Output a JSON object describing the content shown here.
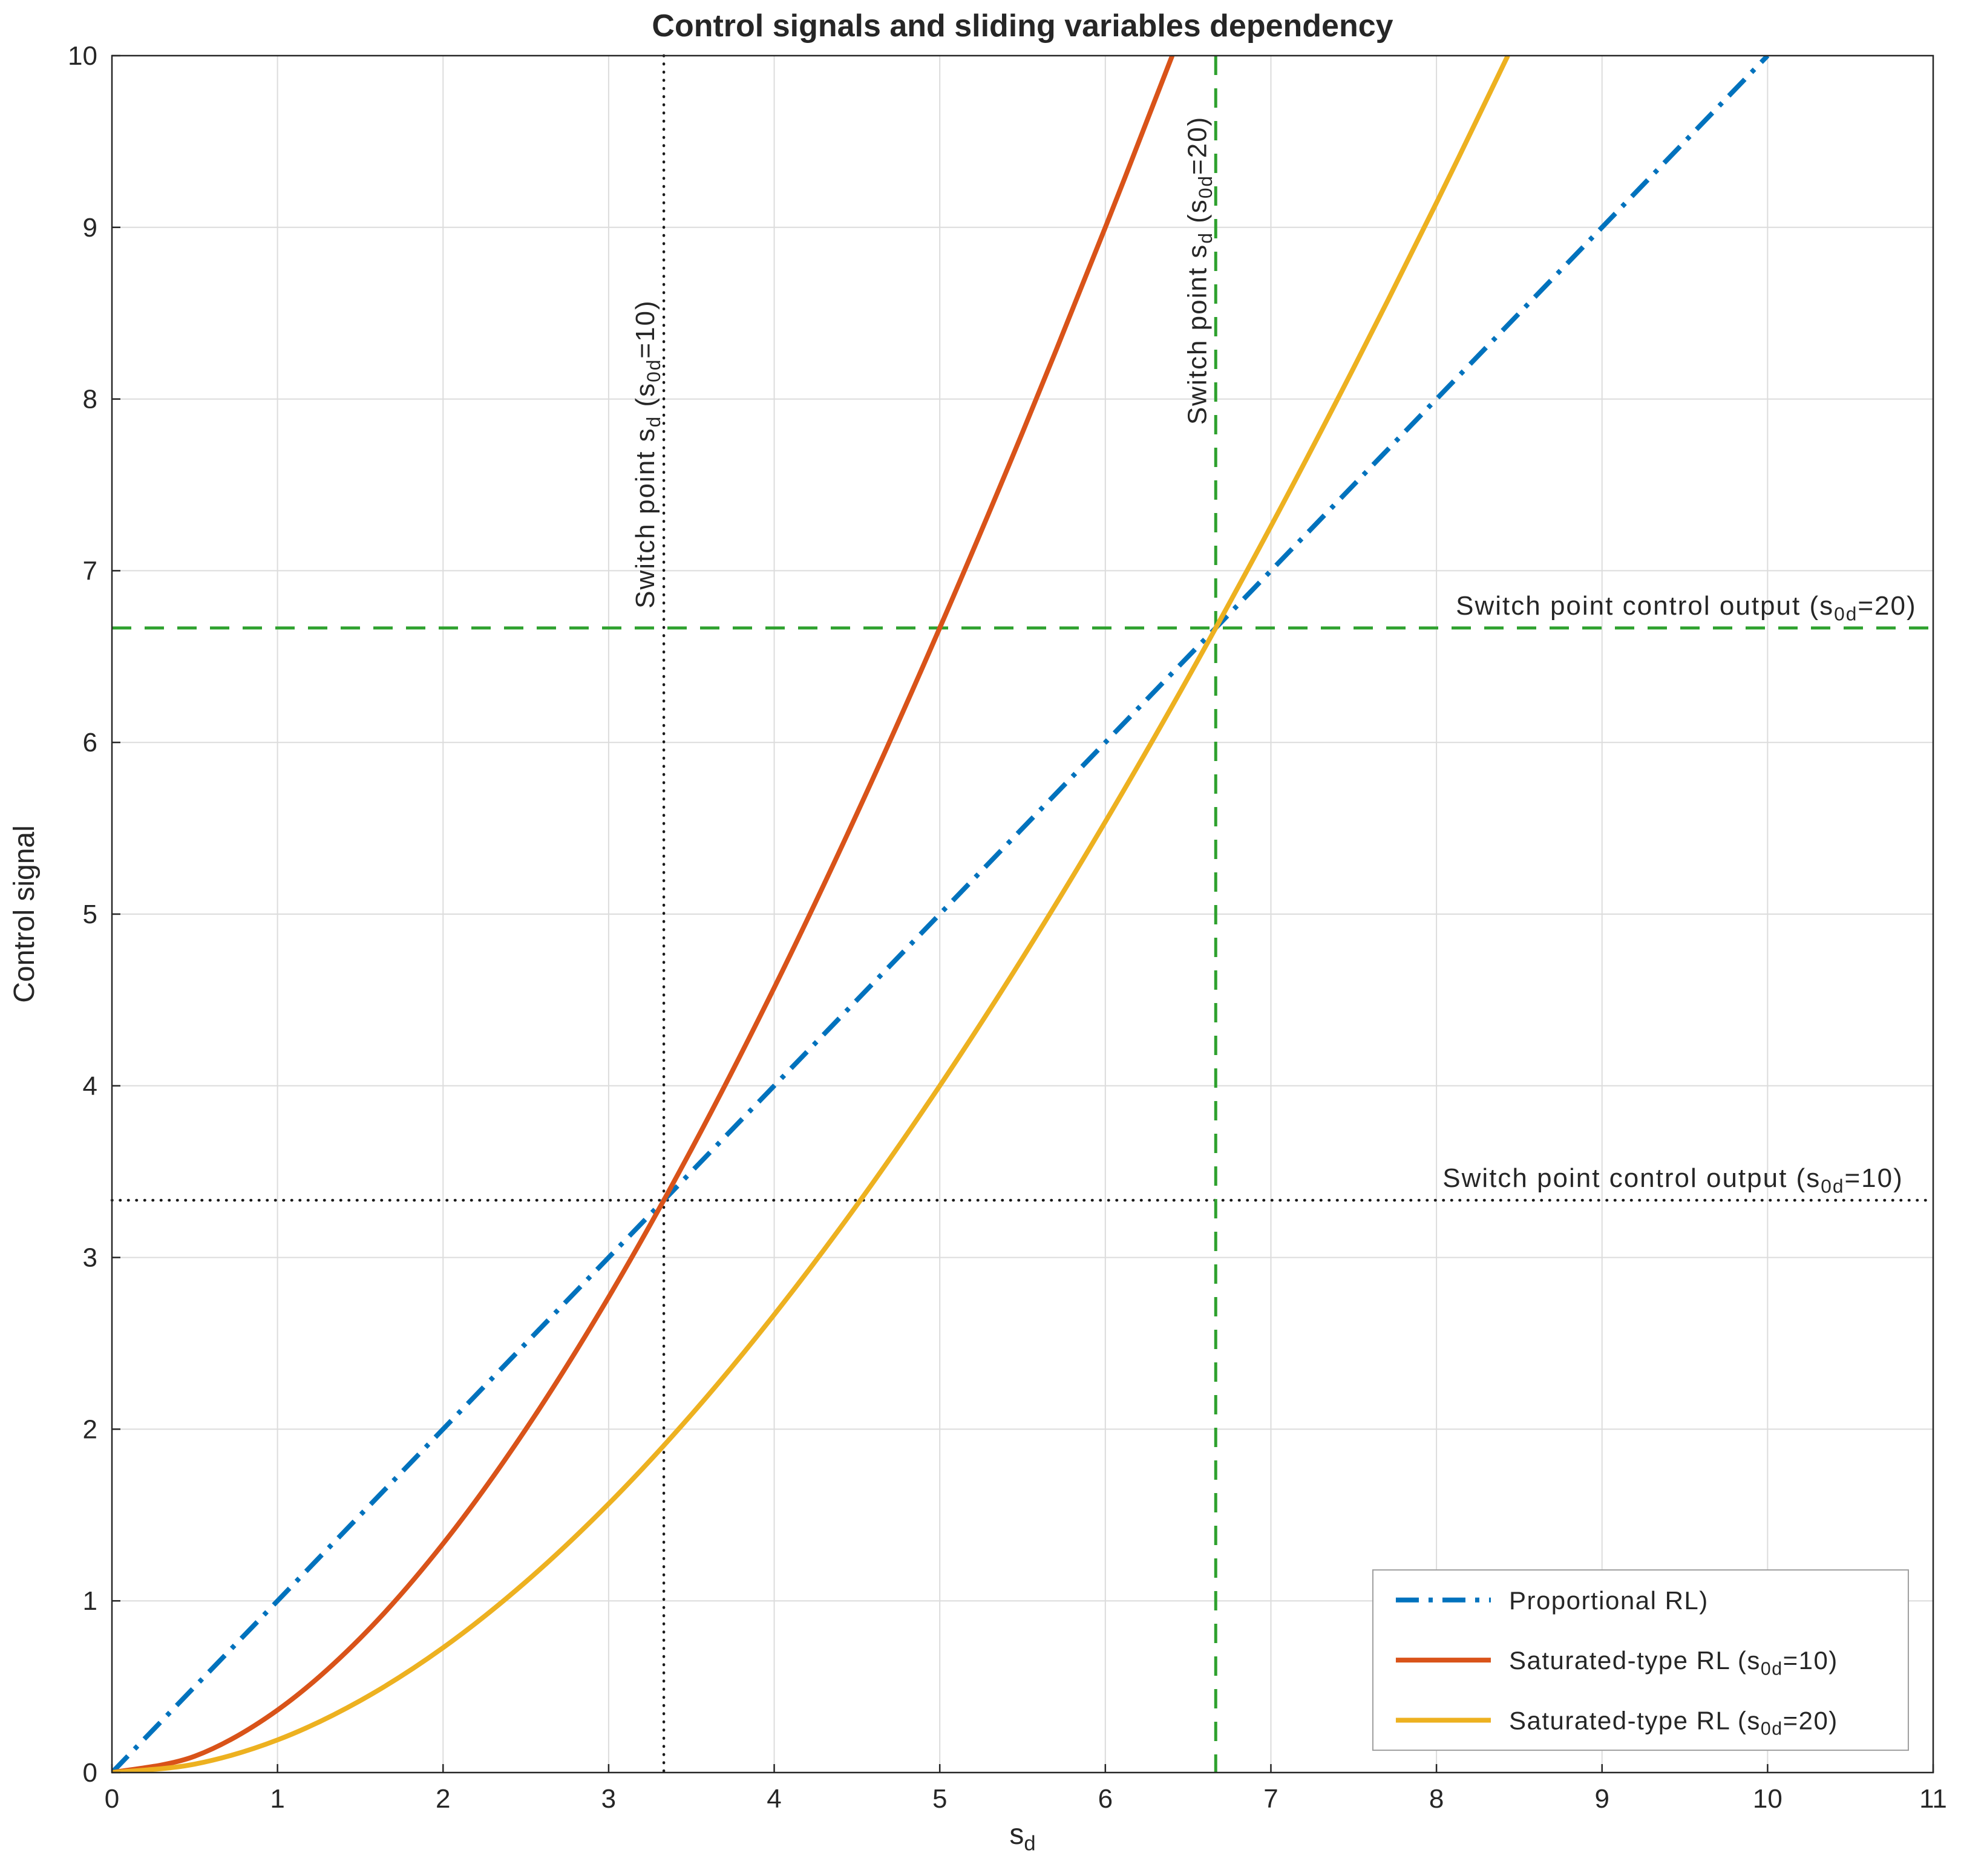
{
  "figure": {
    "background": "#ffffff"
  },
  "chart_data": {
    "type": "line",
    "title": "Control signals and sliding variables dependency",
    "xlabel": "s_{d}",
    "ylabel": "Control signal",
    "xlim": [
      0,
      11
    ],
    "ylim": [
      0,
      10
    ],
    "xticks": [
      0,
      1,
      2,
      3,
      4,
      5,
      6,
      7,
      8,
      9,
      10,
      11
    ],
    "yticks": [
      0,
      1,
      2,
      3,
      4,
      5,
      6,
      7,
      8,
      9,
      10
    ],
    "grid": true,
    "grid_color": "#dcdcdc",
    "axis_color": "#262626",
    "legend_position": "bottom-right",
    "series": [
      {
        "name": "Proportional RL)",
        "color": "#0072BD",
        "style": "dash-dot",
        "width": 8,
        "points": [
          [
            0,
            0
          ],
          [
            10,
            10
          ]
        ]
      },
      {
        "name": "Saturated-type RL (s_{0d}=10)",
        "color": "#D95319",
        "style": "solid",
        "width": 8,
        "points": [
          [
            0,
            0
          ],
          [
            0.5,
            0.095
          ],
          [
            1,
            0.364
          ],
          [
            1.5,
            0.783
          ],
          [
            2,
            1.333
          ],
          [
            2.5,
            2.0
          ],
          [
            3,
            2.769
          ],
          [
            3.5,
            3.63
          ],
          [
            4,
            4.571
          ],
          [
            4.5,
            5.586
          ],
          [
            5,
            6.667
          ],
          [
            5.5,
            7.806
          ],
          [
            6,
            9.0
          ],
          [
            6.404,
            10
          ]
        ]
      },
      {
        "name": "Saturated-type RL (s_{0d}=20)",
        "color": "#EDB120",
        "style": "solid",
        "width": 8,
        "points": [
          [
            0,
            0
          ],
          [
            0.5,
            0.049
          ],
          [
            1,
            0.19
          ],
          [
            1.5,
            0.419
          ],
          [
            2,
            0.727
          ],
          [
            2.5,
            1.111
          ],
          [
            3,
            1.565
          ],
          [
            3.5,
            2.085
          ],
          [
            4,
            2.667
          ],
          [
            4.5,
            3.306
          ],
          [
            5,
            4.0
          ],
          [
            5.5,
            4.745
          ],
          [
            6,
            5.538
          ],
          [
            6.5,
            6.377
          ],
          [
            7,
            7.259
          ],
          [
            7.5,
            8.182
          ],
          [
            8,
            9.143
          ],
          [
            8.431,
            10
          ]
        ]
      }
    ],
    "reference_lines": [
      {
        "orientation": "vertical",
        "value": 3.3333,
        "color": "#1a1a1a",
        "style": "dotted",
        "label": "Switch point s_{d} (s_{0d}=10)",
        "label_anchor_y": 6.78
      },
      {
        "orientation": "horizontal",
        "value": 3.3333,
        "color": "#1a1a1a",
        "style": "dotted",
        "label": "Switch point control output (s_{0d}=10)",
        "label_anchor_x": 10.82
      },
      {
        "orientation": "vertical",
        "value": 6.6667,
        "color": "#2EA12E",
        "style": "dashed",
        "label": "Switch point s_{d} (s_{0d}=20)",
        "label_anchor_y": 7.85
      },
      {
        "orientation": "horizontal",
        "value": 6.6667,
        "color": "#2EA12E",
        "style": "dashed",
        "label": "Switch point control output (s_{0d}=20)",
        "label_anchor_x": 10.9
      }
    ],
    "switch_points": [
      {
        "s_d": 3.3333,
        "control_signal": 3.3333,
        "s_0d": 10
      },
      {
        "s_d": 6.6667,
        "control_signal": 6.6667,
        "s_0d": 20
      }
    ]
  }
}
